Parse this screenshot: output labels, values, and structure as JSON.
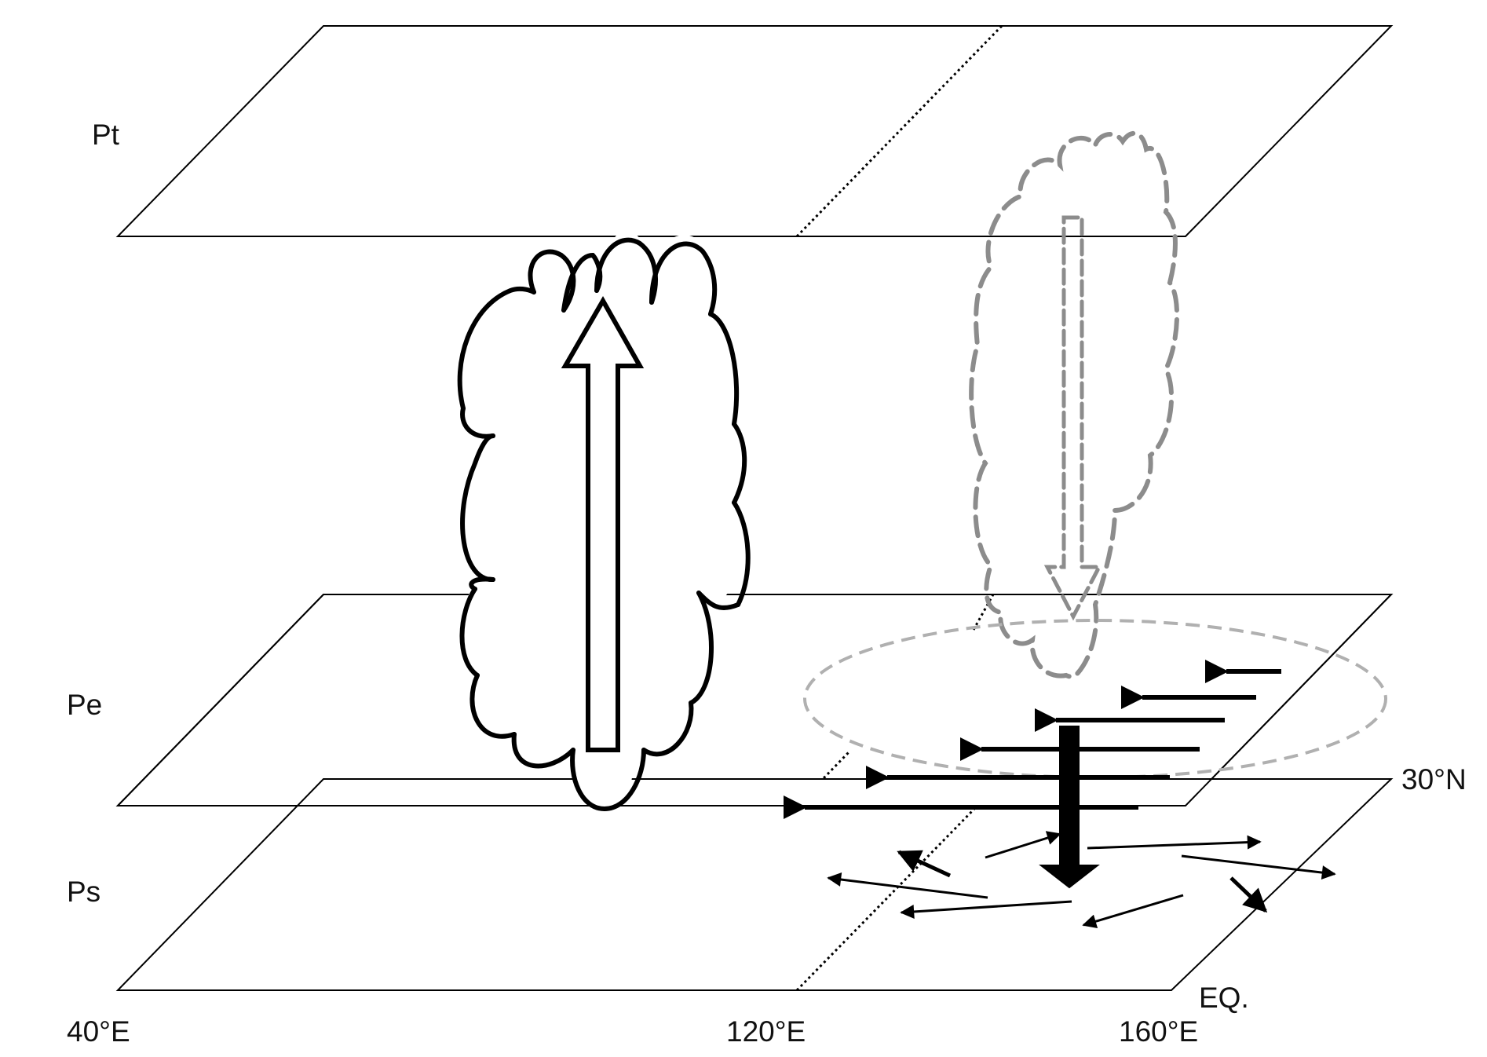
{
  "level_labels": {
    "top": "Pt",
    "middle": "Pe",
    "surface": "Ps"
  },
  "axis_labels": {
    "lon_40": "40°E",
    "lon_120": "120°E",
    "lon_160": "160°E",
    "lat_30": "30°N",
    "equator": "EQ."
  },
  "colors": {
    "line": "#000000",
    "dashed_gray": "#8c8c8c",
    "light_gray": "#b0b0b0",
    "background": "#ffffff"
  }
}
